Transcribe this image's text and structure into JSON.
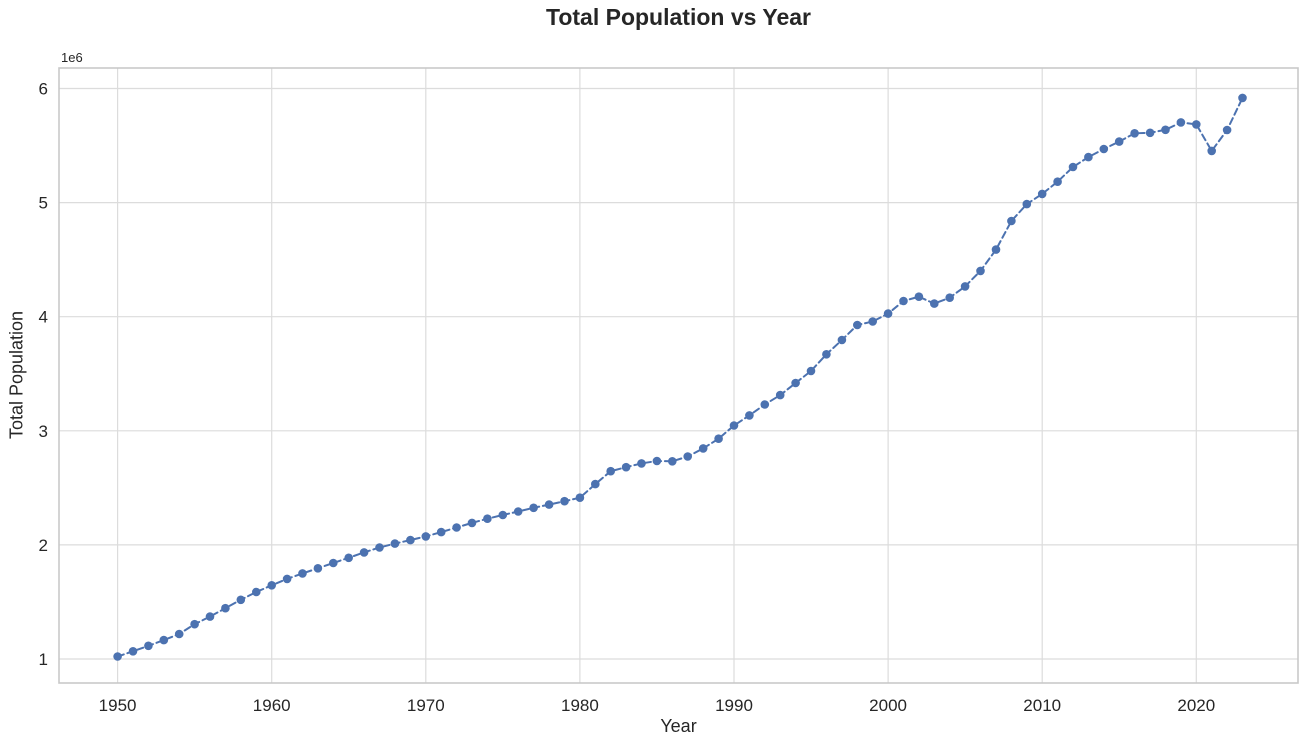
{
  "chart_data": {
    "type": "line",
    "title": "Total Population vs Year",
    "xlabel": "Year",
    "ylabel": "Total Population",
    "y_offset_text": "1e6",
    "grid": true,
    "legend": "none",
    "line_color": "#4C72B0",
    "marker_color": "#4C72B0",
    "grid_color": "#dcdcdc",
    "spine_color": "#c9c9c9",
    "text_color": "#262626",
    "line_style": "dashed",
    "marker": "circle",
    "xlim": [
      1946.2,
      2026.6
    ],
    "ylim": [
      790000,
      6180000
    ],
    "x_ticks": [
      1950,
      1960,
      1970,
      1980,
      1990,
      2000,
      2010,
      2020
    ],
    "x_tick_labels": [
      "1950",
      "1960",
      "1970",
      "1980",
      "1990",
      "2000",
      "2010",
      "2020"
    ],
    "y_ticks": [
      1000000,
      2000000,
      3000000,
      4000000,
      5000000,
      6000000
    ],
    "y_tick_labels": [
      "1",
      "2",
      "3",
      "4",
      "5",
      "6"
    ],
    "x": [
      1950,
      1951,
      1952,
      1953,
      1954,
      1955,
      1956,
      1957,
      1958,
      1959,
      1960,
      1961,
      1962,
      1963,
      1964,
      1965,
      1966,
      1967,
      1968,
      1969,
      1970,
      1971,
      1972,
      1973,
      1974,
      1975,
      1976,
      1977,
      1978,
      1979,
      1980,
      1981,
      1982,
      1983,
      1984,
      1985,
      1986,
      1987,
      1988,
      1989,
      1990,
      1991,
      1992,
      1993,
      1994,
      1995,
      1996,
      1997,
      1998,
      1999,
      2000,
      2001,
      2002,
      2003,
      2004,
      2005,
      2006,
      2007,
      2008,
      2009,
      2010,
      2011,
      2012,
      2013,
      2014,
      2015,
      2016,
      2017,
      2018,
      2019,
      2020,
      2021,
      2022,
      2023
    ],
    "y": [
      1022100,
      1068100,
      1116100,
      1166100,
      1219100,
      1305500,
      1371600,
      1445900,
      1518800,
      1587200,
      1646400,
      1702400,
      1750200,
      1795000,
      1841600,
      1886900,
      1934400,
      1977600,
      2012000,
      2042500,
      2074500,
      2112900,
      2152400,
      2193000,
      2229800,
      2262600,
      2293300,
      2325300,
      2353600,
      2383500,
      2413900,
      2532800,
      2646500,
      2681100,
      2714700,
      2736000,
      2733400,
      2774800,
      2846100,
      2930900,
      3047100,
      3135100,
      3230700,
      3313500,
      3419000,
      3524500,
      3670700,
      3796000,
      3927200,
      3958700,
      4027900,
      4138000,
      4176000,
      4114800,
      4166700,
      4265800,
      4401400,
      4588600,
      4839400,
      4987600,
      5076700,
      5183700,
      5312400,
      5399200,
      5469700,
      5535000,
      5607300,
      5612300,
      5638700,
      5703600,
      5685800,
      5453600,
      5637000,
      5917600
    ]
  }
}
